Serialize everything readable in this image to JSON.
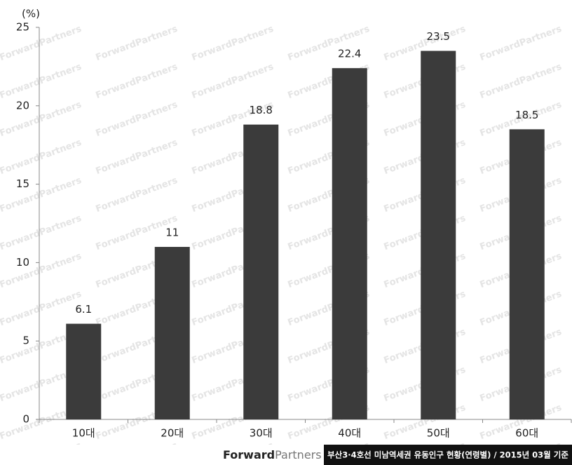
{
  "chart_data": {
    "type": "bar",
    "y_unit": "(%)",
    "categories": [
      "10대",
      "20대",
      "30대",
      "40대",
      "50대",
      "60대"
    ],
    "values": [
      6.1,
      11,
      18.8,
      22.4,
      23.5,
      18.5
    ],
    "color": "#3b3b3b",
    "ylim": [
      0,
      25
    ],
    "yticks": [
      0,
      5,
      10,
      15,
      20,
      25
    ],
    "grid": false
  },
  "watermark": "ForwardPartners",
  "footer": {
    "logo_bold": "Forward",
    "logo_light": "Partners",
    "caption": "부산3·4호선 미남역세권 유동인구 현황(연령별) / 2015년 03월 기준"
  }
}
